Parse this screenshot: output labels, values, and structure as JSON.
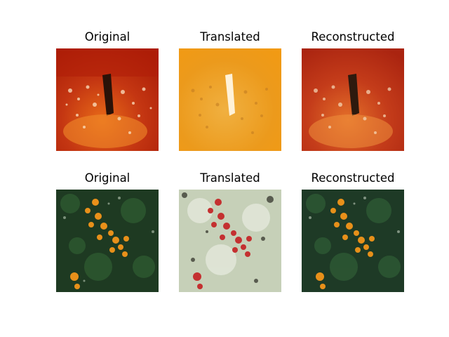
{
  "panels": {
    "r0c0": {
      "title": "Original"
    },
    "r0c1": {
      "title": "Translated"
    },
    "r0c2": {
      "title": "Reconstructed"
    },
    "r1c0": {
      "title": "Original"
    },
    "r1c1": {
      "title": "Translated"
    },
    "r1c2": {
      "title": "Reconstructed"
    }
  }
}
